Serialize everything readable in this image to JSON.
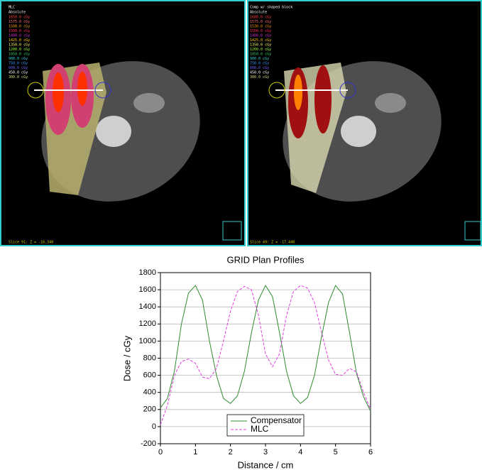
{
  "images": [
    {
      "title": "MLC",
      "mode": "Absolute",
      "levels": [
        "1650.0 cGy",
        "1575.0 cGy",
        "1500.0 cGy",
        "1500.0 cGy",
        "1400.0 cGy",
        "1425.0 cGy",
        "1350.0 cGy",
        "1200.0 cGy",
        "1050.0 cGy",
        "900.0 cGy",
        "750.0 cGy",
        "600.0 cGy",
        "450.0 cGy",
        "300.0 cGy"
      ],
      "slice": "Slice 91: Z = -16.340"
    },
    {
      "title": "Comp w/ shaped block",
      "mode": "Absolute",
      "levels": [
        "1680.0 cGy",
        "1575.0 cGy",
        "1530.0 cGy",
        "1500.0 cGy",
        "1400.0 cGy",
        "1425.0 cGy",
        "1350.0 cGy",
        "1200.0 cGy",
        "1050.0 cGy",
        "900.0 cGy",
        "750.0 cGy",
        "600.0 cGy",
        "450.0 cGy",
        "300.0 cGy"
      ],
      "slice": "Slice 49: Z = -17.440"
    }
  ],
  "chart_data": {
    "type": "line",
    "title": "GRID Plan Profiles",
    "x_label": "Distance / cm",
    "y_label": "Dose / cGy",
    "x": [
      0,
      0.2,
      0.4,
      0.6,
      0.8,
      1.0,
      1.2,
      1.4,
      1.6,
      1.8,
      2.0,
      2.2,
      2.4,
      2.6,
      2.8,
      3.0,
      3.2,
      3.4,
      3.6,
      3.8,
      4.0,
      4.2,
      4.4,
      4.6,
      4.8,
      5.0,
      5.2,
      5.4,
      5.6,
      5.8,
      6.0
    ],
    "series": [
      {
        "name": "Compensator",
        "color": "#2e8b2e",
        "dash": false,
        "values": [
          220,
          330,
          650,
          1200,
          1560,
          1650,
          1480,
          1000,
          600,
          330,
          270,
          360,
          650,
          1100,
          1480,
          1650,
          1520,
          1100,
          650,
          360,
          270,
          340,
          600,
          1050,
          1450,
          1650,
          1550,
          1100,
          620,
          350,
          180
        ]
      },
      {
        "name": "MLC",
        "color": "#e040e0",
        "dash": true,
        "values": [
          20,
          250,
          600,
          760,
          790,
          740,
          580,
          560,
          680,
          1000,
          1350,
          1580,
          1640,
          1600,
          1300,
          850,
          700,
          850,
          1300,
          1580,
          1650,
          1620,
          1450,
          1100,
          780,
          610,
          600,
          680,
          640,
          400,
          200
        ]
      }
    ],
    "xlim": [
      0,
      6
    ],
    "xticks": [
      0,
      1,
      2,
      3,
      4,
      5,
      6
    ],
    "ylim": [
      -200,
      1800
    ],
    "yticks": [
      -200,
      0,
      200,
      400,
      600,
      800,
      1000,
      1200,
      1400,
      1600,
      1800
    ],
    "grid": true,
    "legend": "lower center"
  }
}
